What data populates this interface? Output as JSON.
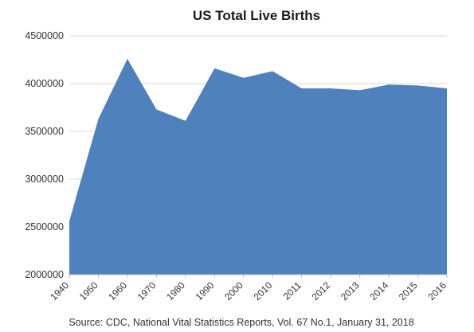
{
  "chart_data": {
    "type": "area",
    "title": "US Total Live Births",
    "xlabel": "",
    "ylabel": "",
    "categories": [
      "1940",
      "1950",
      "1960",
      "1970",
      "1980",
      "1990",
      "2000",
      "2010",
      "2011",
      "2012",
      "2013",
      "2014",
      "2015",
      "2016"
    ],
    "values": [
      2560000,
      3630000,
      4260000,
      3730000,
      3610000,
      4160000,
      4060000,
      4130000,
      3950000,
      3950000,
      3930000,
      3990000,
      3980000,
      3950000
    ],
    "ylim": [
      2000000,
      4500000
    ],
    "yticks": [
      "2000000",
      "2500000",
      "3000000",
      "3500000",
      "4000000",
      "4500000"
    ],
    "grid": "horizontal",
    "legend": "none",
    "fill_color": "#4f81bd",
    "source": "Source: CDC, National Vital Statistics Reports, Vol. 67 No.1, January 31, 2018"
  }
}
